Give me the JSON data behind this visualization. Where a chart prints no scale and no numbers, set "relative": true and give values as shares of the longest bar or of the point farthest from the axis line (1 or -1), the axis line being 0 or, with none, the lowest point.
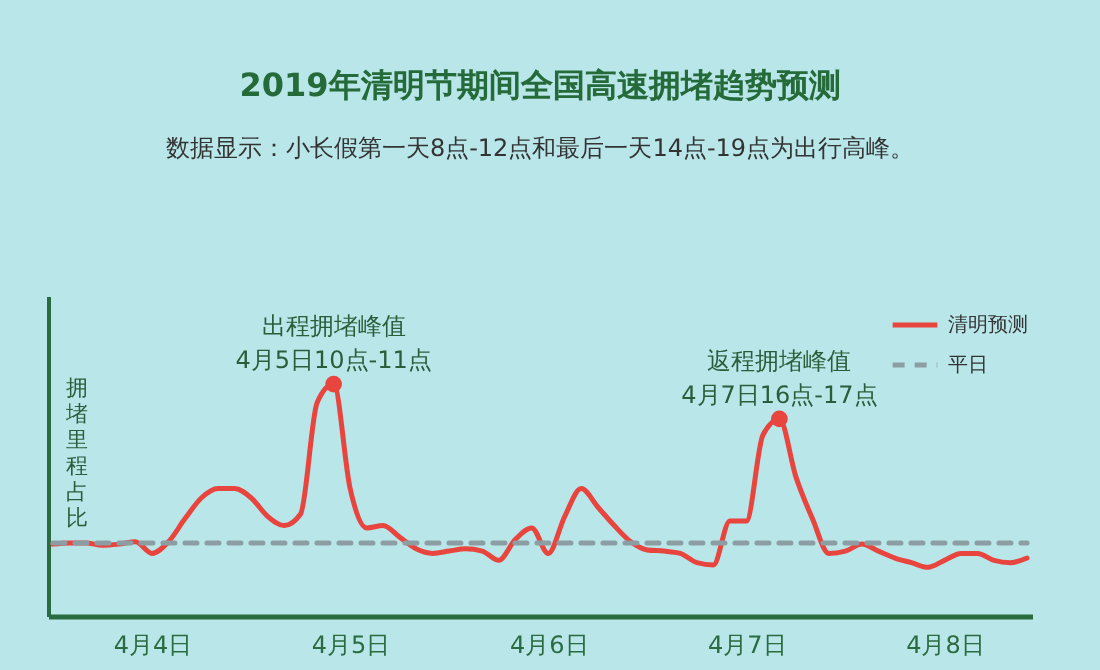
{
  "chart_data": {
    "type": "line",
    "title": "2019年清明节期间全国高速拥堵趋势预测",
    "subtitle": "数据显示：小长假第一天8点-12点和最后一天14点-19点为出行高峰。",
    "ylabel": "拥堵里程占比",
    "relative": true,
    "categories": [
      null,
      null,
      null,
      null,
      null,
      null,
      "4月4日",
      null,
      null,
      null,
      null,
      null,
      null,
      null,
      null,
      null,
      null,
      null,
      "4月5日",
      null,
      null,
      null,
      null,
      null,
      null,
      null,
      null,
      null,
      null,
      null,
      "4月6日",
      null,
      null,
      null,
      null,
      null,
      null,
      null,
      null,
      null,
      null,
      null,
      "4月7日",
      null,
      null,
      null,
      null,
      null,
      null,
      null,
      null,
      null,
      null,
      null,
      "4月8日",
      null,
      null,
      null,
      null,
      null
    ],
    "series": [
      {
        "name": "清明预测",
        "color": "#e8453f",
        "line_style": "solid",
        "values": [
          0.31,
          0.315,
          0.315,
          0.305,
          0.31,
          0.32,
          0.27,
          0.32,
          0.42,
          0.51,
          0.55,
          0.55,
          0.51,
          0.43,
          0.39,
          0.44,
          0.92,
          1.0,
          0.55,
          0.38,
          0.39,
          0.34,
          0.29,
          0.27,
          0.28,
          0.29,
          0.28,
          0.24,
          0.33,
          0.38,
          0.27,
          0.43,
          0.55,
          0.47,
          0.39,
          0.32,
          0.285,
          0.28,
          0.27,
          0.23,
          0.22,
          0.41,
          0.41,
          0.78,
          0.85,
          0.6,
          0.42,
          0.27,
          0.28,
          0.31,
          0.28,
          0.25,
          0.23,
          0.21,
          0.24,
          0.27,
          0.27,
          0.24,
          0.23,
          0.25
        ]
      },
      {
        "name": "平日",
        "color": "#8c9ea3",
        "line_style": "dashed",
        "values": [
          0.315,
          0.315,
          0.315,
          0.315,
          0.315,
          0.315,
          0.315,
          0.315,
          0.315,
          0.315,
          0.315,
          0.315,
          0.315,
          0.315,
          0.315,
          0.315,
          0.315,
          0.315,
          0.315,
          0.315,
          0.315,
          0.315,
          0.315,
          0.315,
          0.315,
          0.315,
          0.315,
          0.315,
          0.315,
          0.315,
          0.315,
          0.315,
          0.315,
          0.315,
          0.315,
          0.315,
          0.315,
          0.315,
          0.315,
          0.315,
          0.315,
          0.315,
          0.315,
          0.315,
          0.315,
          0.315,
          0.315,
          0.315,
          0.315,
          0.315,
          0.315,
          0.315,
          0.315,
          0.315,
          0.315,
          0.315,
          0.315,
          0.315,
          0.315,
          0.315
        ]
      }
    ],
    "annotations": [
      {
        "text": "出程拥堵峰值\n4月5日10点-11点",
        "y": 1.0
      },
      {
        "text": "返程拥堵峰值\n4月7日16点-17点",
        "y": 0.85
      }
    ],
    "legend": "top right",
    "grid": false,
    "marker": "none"
  }
}
